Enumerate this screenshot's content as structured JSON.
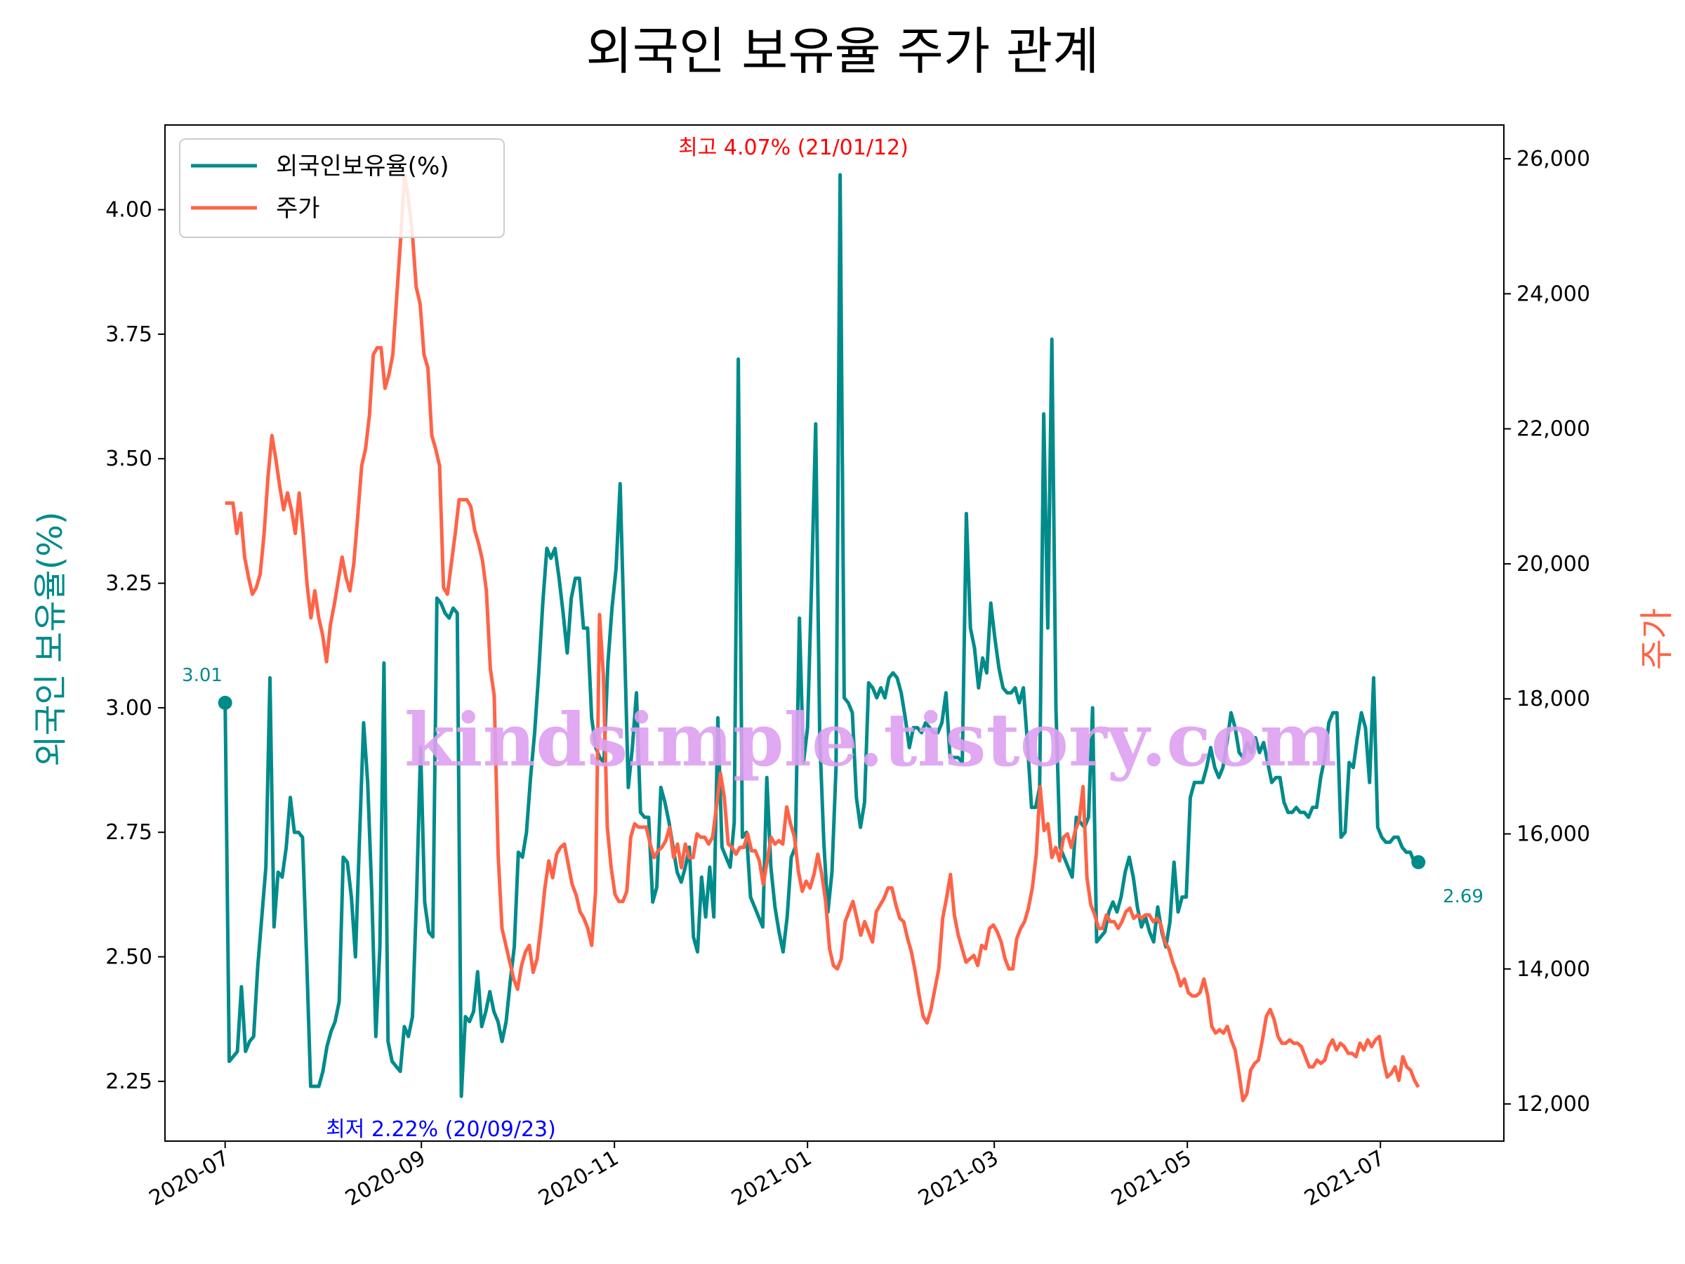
{
  "chart_data": {
    "type": "line",
    "title": "외국인 보유율 주가 관계",
    "ylabel_left": "외국인 보유율(%)",
    "ylabel_right": "주가",
    "colors": {
      "foreign": "#008b8b",
      "price": "#ff6347",
      "high": "#ff0000",
      "low": "#0000ff",
      "watermark": "#dda0f0"
    },
    "x_range": [
      "2020-06-12",
      "2021-08-09"
    ],
    "x_ticks": [
      "2020-07",
      "2020-09",
      "2020-11",
      "2021-01",
      "2021-03",
      "2021-05",
      "2021-07"
    ],
    "x_tick_dates": [
      "2020-07-01",
      "2020-09-01",
      "2020-11-01",
      "2021-01-01",
      "2021-03-01",
      "2021-05-01",
      "2021-07-01"
    ],
    "ylim_left": [
      2.13,
      4.17
    ],
    "yticks_left": [
      2.25,
      2.5,
      2.75,
      3.0,
      3.25,
      3.5,
      3.75,
      4.0
    ],
    "ytick_labels_left": [
      "2.25",
      "2.50",
      "2.75",
      "3.00",
      "3.25",
      "3.50",
      "3.75",
      "4.00"
    ],
    "ylim_right": [
      11450,
      26500
    ],
    "yticks_right": [
      12000,
      14000,
      16000,
      18000,
      20000,
      22000,
      24000,
      26000
    ],
    "ytick_labels_right": [
      "12,000",
      "14,000",
      "16,000",
      "18,000",
      "20,000",
      "22,000",
      "24,000",
      "26,000"
    ],
    "legend": [
      "외국인보유율(%)",
      "주가"
    ],
    "annotations": {
      "high": "최고 4.07% (21/01/12)",
      "low": "최저 2.22% (20/09/23)",
      "start": "3.01",
      "end": "2.69"
    },
    "watermark": "kindsimple.tistory.com",
    "series": [
      {
        "name": "외국인보유율(%)",
        "axis": "left",
        "start_date": "2020-07-01",
        "values": [
          3.01,
          2.29,
          2.3,
          2.31,
          2.44,
          2.31,
          2.33,
          2.34,
          2.48,
          2.58,
          2.68,
          3.06,
          2.56,
          2.67,
          2.66,
          2.72,
          2.82,
          2.75,
          2.75,
          2.74,
          2.5,
          2.24,
          2.24,
          2.24,
          2.27,
          2.32,
          2.35,
          2.37,
          2.41,
          2.7,
          2.69,
          2.62,
          2.5,
          2.74,
          2.97,
          2.85,
          2.63,
          2.34,
          2.52,
          3.09,
          2.33,
          2.29,
          2.28,
          2.27,
          2.36,
          2.34,
          2.38,
          2.62,
          2.92,
          2.61,
          2.55,
          2.54,
          3.22,
          3.21,
          3.19,
          3.18,
          3.2,
          3.19,
          2.22,
          2.38,
          2.37,
          2.39,
          2.47,
          2.36,
          2.39,
          2.43,
          2.39,
          2.37,
          2.33,
          2.37,
          2.45,
          2.52,
          2.71,
          2.7,
          2.75,
          2.86,
          2.95,
          3.07,
          3.21,
          3.32,
          3.3,
          3.32,
          3.26,
          3.19,
          3.11,
          3.22,
          3.26,
          3.26,
          3.16,
          3.16,
          2.98,
          2.92,
          2.9,
          2.89,
          3.09,
          3.2,
          3.28,
          3.45,
          3.15,
          2.84,
          2.92,
          3.03,
          2.79,
          2.78,
          2.78,
          2.61,
          2.64,
          2.84,
          2.81,
          2.77,
          2.72,
          2.67,
          2.65,
          2.68,
          2.72,
          2.54,
          2.51,
          2.66,
          2.58,
          2.68,
          2.58,
          2.98,
          2.72,
          2.7,
          2.68,
          2.77,
          3.7,
          2.74,
          2.75,
          2.62,
          2.6,
          2.58,
          2.56,
          2.86,
          2.68,
          2.6,
          2.55,
          2.51,
          2.58,
          2.7,
          2.72,
          3.18,
          2.89,
          2.96,
          3.25,
          3.57,
          2.94,
          2.73,
          2.59,
          2.67,
          2.88,
          4.07,
          3.02,
          3.01,
          2.99,
          2.82,
          2.76,
          2.81,
          3.05,
          3.04,
          3.02,
          3.04,
          3.02,
          3.06,
          3.07,
          3.06,
          3.03,
          2.98,
          2.92,
          2.96,
          2.96,
          2.95,
          2.97,
          2.96,
          2.95,
          2.95,
          2.97,
          3.03,
          2.9,
          2.9,
          2.9,
          2.89,
          3.39,
          3.16,
          3.12,
          3.04,
          3.1,
          3.07,
          3.21,
          3.14,
          3.08,
          3.04,
          3.03,
          3.03,
          3.04,
          3.01,
          3.04,
          2.93,
          2.8,
          2.8,
          2.84,
          3.59,
          3.16,
          3.74,
          3.0,
          2.72,
          2.7,
          2.68,
          2.66,
          2.78,
          2.77,
          2.76,
          2.78,
          3.0,
          2.53,
          2.54,
          2.55,
          2.59,
          2.61,
          2.59,
          2.62,
          2.67,
          2.7,
          2.66,
          2.6,
          2.56,
          2.58,
          2.55,
          2.53,
          2.6,
          2.55,
          2.52,
          2.57,
          2.69,
          2.59,
          2.62,
          2.62,
          2.82,
          2.85,
          2.85,
          2.85,
          2.88,
          2.92,
          2.88,
          2.86,
          2.88,
          2.93,
          2.99,
          2.96,
          2.91,
          2.9,
          2.93,
          2.91,
          2.94,
          2.91,
          2.93,
          2.89,
          2.85,
          2.86,
          2.86,
          2.81,
          2.79,
          2.79,
          2.8,
          2.79,
          2.79,
          2.78,
          2.8,
          2.8,
          2.86,
          2.9,
          2.97,
          2.99,
          2.99,
          2.74,
          2.75,
          2.89,
          2.88,
          2.94,
          2.99,
          2.96,
          2.85,
          3.06,
          2.76,
          2.74,
          2.73,
          2.73,
          2.74,
          2.74,
          2.72,
          2.71,
          2.71,
          2.69,
          2.69
        ]
      },
      {
        "name": "주가",
        "axis": "right",
        "start_date": "2020-07-01",
        "values": [
          20900,
          20900,
          20900,
          20450,
          20750,
          20100,
          19800,
          19550,
          19650,
          19850,
          20450,
          21300,
          21900,
          21550,
          21150,
          20800,
          21050,
          20800,
          20450,
          21050,
          20450,
          19700,
          19200,
          19600,
          19200,
          18950,
          18550,
          19100,
          19400,
          19750,
          20100,
          19800,
          19600,
          20000,
          20700,
          21450,
          21700,
          22200,
          23100,
          23200,
          23200,
          22600,
          22800,
          23100,
          23950,
          24800,
          25750,
          25400,
          24900,
          24100,
          23850,
          23100,
          22900,
          21900,
          21700,
          21450,
          19650,
          19550,
          20000,
          20450,
          20950,
          20950,
          20950,
          20850,
          20500,
          20300,
          20050,
          19600,
          18450,
          18050,
          15700,
          14600,
          14350,
          14100,
          13850,
          13700,
          14050,
          14250,
          14350,
          13950,
          14150,
          14650,
          15200,
          15600,
          15350,
          15700,
          15800,
          15850,
          15550,
          15250,
          15100,
          14850,
          14750,
          14600,
          14350,
          15150,
          19250,
          18350,
          16100,
          15500,
          15100,
          15000,
          15000,
          15150,
          15950,
          16150,
          16100,
          16100,
          16100,
          15850,
          15650,
          15750,
          15800,
          15900,
          16100,
          15650,
          15850,
          15500,
          15850,
          15650,
          15650,
          16000,
          15950,
          15950,
          15850,
          15950,
          16400,
          16900,
          16550,
          15850,
          15800,
          15700,
          15800,
          15800,
          16000,
          15750,
          15750,
          15600,
          15250,
          15600,
          15950,
          15850,
          15900,
          15850,
          16400,
          16150,
          15950,
          15450,
          15150,
          15300,
          15200,
          15400,
          15700,
          15400,
          15000,
          14300,
          14050,
          14000,
          14150,
          14700,
          14850,
          15000,
          14750,
          14500,
          14700,
          14550,
          14400,
          14850,
          14950,
          15050,
          15200,
          15200,
          14950,
          14750,
          14700,
          14450,
          14250,
          13950,
          13600,
          13300,
          13200,
          13400,
          13700,
          14000,
          14750,
          15050,
          15400,
          14800,
          14500,
          14300,
          14100,
          14150,
          14200,
          14050,
          14350,
          14300,
          14600,
          14650,
          14550,
          14400,
          14150,
          14000,
          14000,
          14450,
          14600,
          14700,
          14900,
          15200,
          15700,
          16700,
          16050,
          16150,
          15650,
          15800,
          15600,
          15950,
          16000,
          15800,
          16050,
          16200,
          16700,
          15350,
          14950,
          14800,
          14600,
          14600,
          14800,
          14700,
          14700,
          14600,
          14700,
          14850,
          14900,
          14750,
          14800,
          14750,
          14800,
          14800,
          14700,
          14750,
          14650,
          14400,
          14300,
          14100,
          13950,
          13750,
          13850,
          13650,
          13600,
          13600,
          13650,
          13850,
          13600,
          13150,
          13050,
          13100,
          13050,
          13150,
          12950,
          12800,
          12450,
          12050,
          12150,
          12500,
          12600,
          12650,
          12950,
          13300,
          13400,
          13250,
          13000,
          12900,
          12900,
          12950,
          12900,
          12900,
          12850,
          12700,
          12550,
          12550,
          12650,
          12600,
          12650,
          12850,
          12950,
          12800,
          12900,
          12850,
          12750,
          12750,
          12700,
          12900,
          12800,
          12950,
          12850,
          12950,
          13000,
          12650,
          12400,
          12450,
          12550,
          12350,
          12700,
          12550,
          12500,
          12350,
          12250
        ]
      }
    ]
  }
}
